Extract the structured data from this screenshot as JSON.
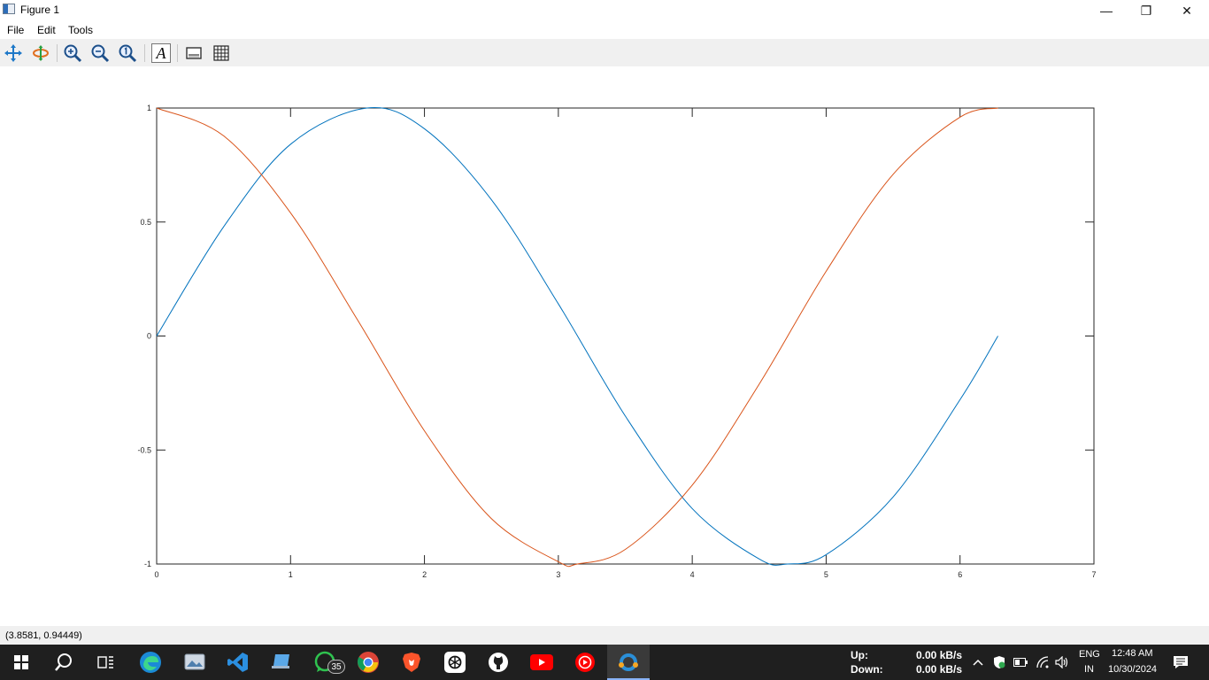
{
  "window": {
    "title": "Figure 1",
    "minimize_glyph": "—",
    "maximize_glyph": "❐",
    "close_glyph": "✕"
  },
  "menu": {
    "file": "File",
    "edit": "Edit",
    "tools": "Tools"
  },
  "toolbar": {
    "icons": [
      "pan-icon",
      "rotate-icon",
      "zoom-in-icon",
      "zoom-out-icon",
      "zoom-reset-icon",
      "insert-text-icon",
      "toggle-axes-icon",
      "toggle-grid-icon"
    ],
    "text_tool_label": "A"
  },
  "chart_data": {
    "type": "line",
    "xlim": [
      0,
      7
    ],
    "ylim": [
      -1,
      1
    ],
    "xticks": [
      0,
      1,
      2,
      3,
      4,
      5,
      6,
      7
    ],
    "yticks": [
      -1,
      -0.5,
      0,
      0.5,
      1
    ],
    "xtick_labels": [
      "0",
      "1",
      "2",
      "3",
      "4",
      "5",
      "6",
      "7"
    ],
    "ytick_labels": [
      "-1",
      "-0.5",
      "0",
      "0.5",
      "1"
    ],
    "grid": false,
    "series": [
      {
        "color": "#0072bd",
        "x": [
          0,
          0.5,
          1,
          1.5708,
          2,
          2.5,
          3,
          3.5,
          4,
          4.5,
          4.7124,
          5,
          5.5,
          6,
          6.2832
        ],
        "y": [
          0,
          0.479,
          0.841,
          1,
          0.909,
          0.598,
          0.141,
          -0.351,
          -0.757,
          -0.978,
          -1,
          -0.959,
          -0.706,
          -0.279,
          0
        ]
      },
      {
        "color": "#d95319",
        "x": [
          0,
          0.5,
          1,
          1.5,
          2,
          2.5,
          3,
          3.1416,
          3.5,
          4,
          4.5,
          5,
          5.5,
          6,
          6.2832
        ],
        "y": [
          1,
          0.878,
          0.54,
          0.071,
          -0.416,
          -0.801,
          -0.99,
          -1,
          -0.936,
          -0.654,
          -0.211,
          0.284,
          0.709,
          0.96,
          1
        ]
      }
    ]
  },
  "status": {
    "coordinates": "(3.8581, 0.94449)"
  },
  "taskbar": {
    "icons": [
      "windows-start-icon",
      "search-icon",
      "task-view-icon",
      "edge-icon",
      "photos-icon",
      "vscode-icon",
      "computer-icon",
      "whatsapp-icon",
      "chrome-icon",
      "brave-icon",
      "chatgpt-icon",
      "github-icon",
      "youtube-icon",
      "youtube-music-icon",
      "octave-icon"
    ],
    "whatsapp_badge": "35",
    "net_up_label": "Up:",
    "net_down_label": "Down:",
    "net_up_value": "0.00 kB/s",
    "net_down_value": "0.00 kB/s",
    "language": "ENG",
    "region": "IN",
    "time": "12:48 AM",
    "date": "10/30/2024"
  }
}
